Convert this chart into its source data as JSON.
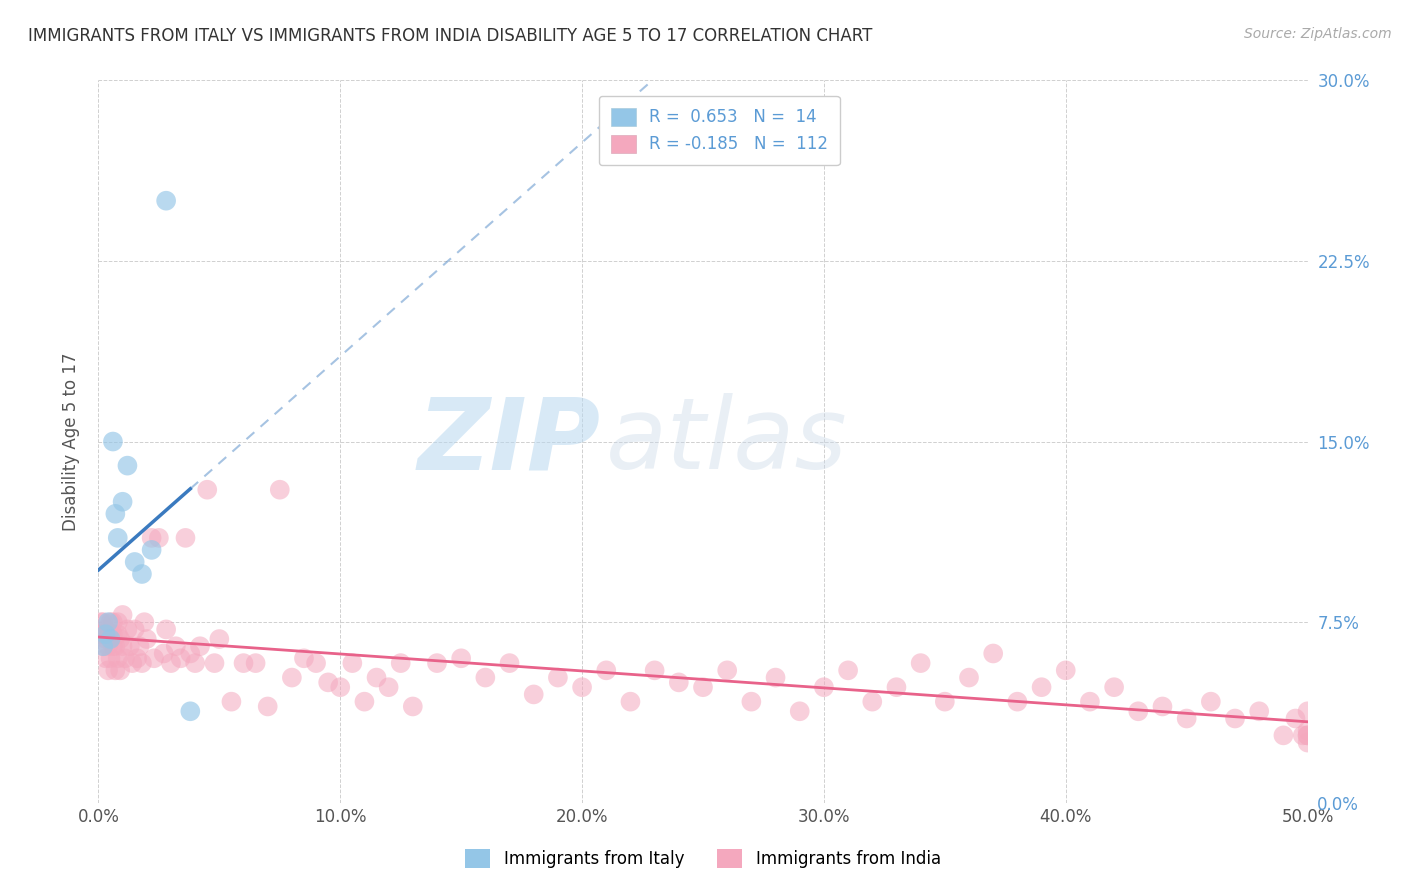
{
  "title": "IMMIGRANTS FROM ITALY VS IMMIGRANTS FROM INDIA DISABILITY AGE 5 TO 17 CORRELATION CHART",
  "source": "Source: ZipAtlas.com",
  "ylabel": "Disability Age 5 to 17",
  "xlim": [
    0.0,
    0.5
  ],
  "ylim": [
    0.0,
    0.3
  ],
  "xticks": [
    0.0,
    0.1,
    0.2,
    0.3,
    0.4,
    0.5
  ],
  "xticklabels": [
    "0.0%",
    "10.0%",
    "20.0%",
    "30.0%",
    "40.0%",
    "50.0%"
  ],
  "yticks": [
    0.0,
    0.075,
    0.15,
    0.225,
    0.3
  ],
  "yticklabels": [
    "0.0%",
    "7.5%",
    "15.0%",
    "22.5%",
    "30.0%"
  ],
  "italy_R": 0.653,
  "italy_N": 14,
  "india_R": -0.185,
  "india_N": 112,
  "italy_color": "#94c6e7",
  "india_color": "#f4a8be",
  "italy_line_color": "#3a7abf",
  "india_line_color": "#e8628a",
  "watermark_zip": "ZIP",
  "watermark_atlas": "atlas",
  "italy_x": [
    0.002,
    0.003,
    0.004,
    0.005,
    0.006,
    0.007,
    0.008,
    0.01,
    0.012,
    0.015,
    0.018,
    0.022,
    0.028,
    0.038
  ],
  "italy_y": [
    0.065,
    0.07,
    0.075,
    0.068,
    0.15,
    0.12,
    0.11,
    0.125,
    0.14,
    0.1,
    0.095,
    0.105,
    0.25,
    0.038
  ],
  "india_x": [
    0.001,
    0.001,
    0.002,
    0.002,
    0.002,
    0.003,
    0.003,
    0.003,
    0.004,
    0.004,
    0.004,
    0.005,
    0.005,
    0.005,
    0.006,
    0.006,
    0.006,
    0.007,
    0.007,
    0.008,
    0.008,
    0.008,
    0.009,
    0.009,
    0.01,
    0.01,
    0.011,
    0.012,
    0.013,
    0.014,
    0.015,
    0.016,
    0.017,
    0.018,
    0.019,
    0.02,
    0.022,
    0.023,
    0.025,
    0.027,
    0.028,
    0.03,
    0.032,
    0.034,
    0.036,
    0.038,
    0.04,
    0.042,
    0.045,
    0.048,
    0.05,
    0.055,
    0.06,
    0.065,
    0.07,
    0.075,
    0.08,
    0.085,
    0.09,
    0.095,
    0.1,
    0.105,
    0.11,
    0.115,
    0.12,
    0.125,
    0.13,
    0.14,
    0.15,
    0.16,
    0.17,
    0.18,
    0.19,
    0.2,
    0.21,
    0.22,
    0.23,
    0.24,
    0.25,
    0.26,
    0.27,
    0.28,
    0.29,
    0.3,
    0.31,
    0.32,
    0.33,
    0.34,
    0.35,
    0.36,
    0.37,
    0.38,
    0.39,
    0.4,
    0.41,
    0.42,
    0.43,
    0.44,
    0.45,
    0.46,
    0.47,
    0.48,
    0.49,
    0.495,
    0.498,
    0.5,
    0.5,
    0.5,
    0.5,
    0.5
  ],
  "india_y": [
    0.075,
    0.07,
    0.065,
    0.07,
    0.075,
    0.06,
    0.068,
    0.072,
    0.055,
    0.065,
    0.07,
    0.06,
    0.07,
    0.075,
    0.065,
    0.07,
    0.075,
    0.055,
    0.065,
    0.06,
    0.07,
    0.075,
    0.055,
    0.068,
    0.065,
    0.078,
    0.06,
    0.072,
    0.065,
    0.058,
    0.072,
    0.06,
    0.065,
    0.058,
    0.075,
    0.068,
    0.11,
    0.06,
    0.11,
    0.062,
    0.072,
    0.058,
    0.065,
    0.06,
    0.11,
    0.062,
    0.058,
    0.065,
    0.13,
    0.058,
    0.068,
    0.042,
    0.058,
    0.058,
    0.04,
    0.13,
    0.052,
    0.06,
    0.058,
    0.05,
    0.048,
    0.058,
    0.042,
    0.052,
    0.048,
    0.058,
    0.04,
    0.058,
    0.06,
    0.052,
    0.058,
    0.045,
    0.052,
    0.048,
    0.055,
    0.042,
    0.055,
    0.05,
    0.048,
    0.055,
    0.042,
    0.052,
    0.038,
    0.048,
    0.055,
    0.042,
    0.048,
    0.058,
    0.042,
    0.052,
    0.062,
    0.042,
    0.048,
    0.055,
    0.042,
    0.048,
    0.038,
    0.04,
    0.035,
    0.042,
    0.035,
    0.038,
    0.028,
    0.035,
    0.028,
    0.03,
    0.038,
    0.028,
    0.025,
    0.028
  ]
}
